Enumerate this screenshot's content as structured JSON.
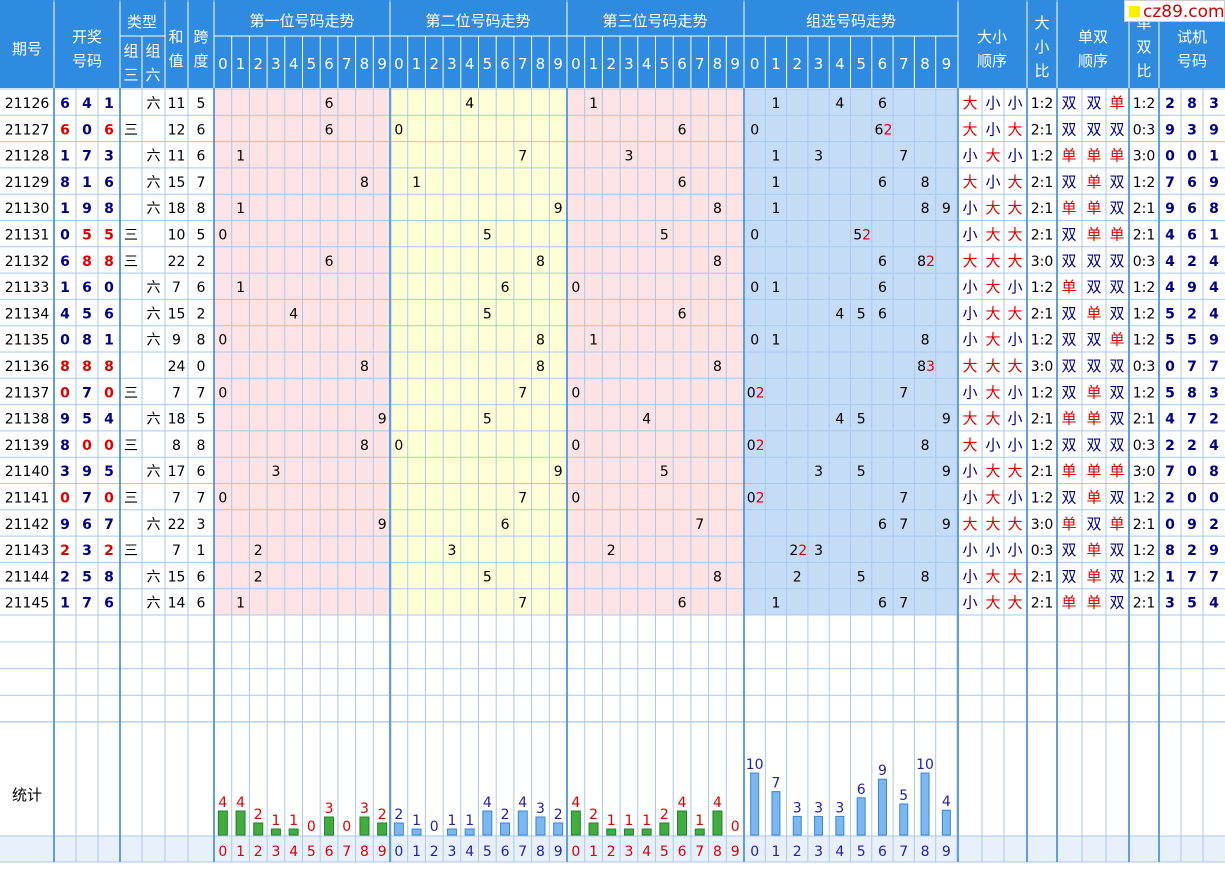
{
  "header": {
    "period": "期号",
    "draw_line1": "开奖",
    "draw_line2": "号码",
    "type": "类型",
    "type_g3_1": "组",
    "type_g3_2": "三",
    "type_g6_1": "组",
    "type_g6_2": "六",
    "sum_1": "和",
    "sum_2": "值",
    "span_1": "跨",
    "span_2": "度",
    "pos1": "第一位号码走势",
    "pos2": "第二位号码走势",
    "pos3": "第三位号码走势",
    "group": "组选号码走势",
    "bs_order_1": "大小",
    "bs_order_2": "顺序",
    "bs_ratio_1": "大",
    "bs_ratio_2": "小",
    "bs_ratio_3": "比",
    "oe_order_1": "单双",
    "oe_order_2": "顺序",
    "oe_ratio_1": "单",
    "oe_ratio_2": "双",
    "oe_ratio_3": "比",
    "trial_1": "试机",
    "trial_2": "号码",
    "digits": [
      "0",
      "1",
      "2",
      "3",
      "4",
      "5",
      "6",
      "7",
      "8",
      "9"
    ]
  },
  "watermark": "cz89.com",
  "stats_label": "统计",
  "colors": {
    "header": "#2e8be0",
    "red": "#e00000",
    "blue": "#00008b",
    "pink": "#fde3e3",
    "yellow": "#ffffd6",
    "lightblue": "#c5dcf6",
    "grid": "#a9c9ee"
  },
  "rows": [
    {
      "period": "21126",
      "num": [
        "6",
        "4",
        "1"
      ],
      "type": "六",
      "sum": "11",
      "span": "5",
      "bs": [
        "大",
        "小",
        "小"
      ],
      "bsr": "1:2",
      "oe": [
        "双",
        "双",
        "单"
      ],
      "oer": "1:2",
      "trial": [
        "2",
        "8",
        "3"
      ]
    },
    {
      "period": "21127",
      "num": [
        "6",
        "0",
        "6"
      ],
      "type": "三",
      "sum": "12",
      "span": "6",
      "bs": [
        "大",
        "小",
        "大"
      ],
      "bsr": "2:1",
      "oe": [
        "双",
        "双",
        "双"
      ],
      "oer": "0:3",
      "trial": [
        "9",
        "3",
        "9"
      ]
    },
    {
      "period": "21128",
      "num": [
        "1",
        "7",
        "3"
      ],
      "type": "六",
      "sum": "11",
      "span": "6",
      "bs": [
        "小",
        "大",
        "小"
      ],
      "bsr": "1:2",
      "oe": [
        "单",
        "单",
        "单"
      ],
      "oer": "3:0",
      "trial": [
        "0",
        "0",
        "1"
      ]
    },
    {
      "period": "21129",
      "num": [
        "8",
        "1",
        "6"
      ],
      "type": "六",
      "sum": "15",
      "span": "7",
      "bs": [
        "大",
        "小",
        "大"
      ],
      "bsr": "2:1",
      "oe": [
        "双",
        "单",
        "双"
      ],
      "oer": "1:2",
      "trial": [
        "7",
        "6",
        "9"
      ]
    },
    {
      "period": "21130",
      "num": [
        "1",
        "9",
        "8"
      ],
      "type": "六",
      "sum": "18",
      "span": "8",
      "bs": [
        "小",
        "大",
        "大"
      ],
      "bsr": "2:1",
      "oe": [
        "单",
        "单",
        "双"
      ],
      "oer": "2:1",
      "trial": [
        "9",
        "6",
        "8"
      ]
    },
    {
      "period": "21131",
      "num": [
        "0",
        "5",
        "5"
      ],
      "type": "三",
      "sum": "10",
      "span": "5",
      "bs": [
        "小",
        "大",
        "大"
      ],
      "bsr": "2:1",
      "oe": [
        "双",
        "单",
        "单"
      ],
      "oer": "2:1",
      "trial": [
        "4",
        "6",
        "1"
      ]
    },
    {
      "period": "21132",
      "num": [
        "6",
        "8",
        "8"
      ],
      "type": "三",
      "sum": "22",
      "span": "2",
      "bs": [
        "大",
        "大",
        "大"
      ],
      "bsr": "3:0",
      "oe": [
        "双",
        "双",
        "双"
      ],
      "oer": "0:3",
      "trial": [
        "4",
        "2",
        "4"
      ]
    },
    {
      "period": "21133",
      "num": [
        "1",
        "6",
        "0"
      ],
      "type": "六",
      "sum": "7",
      "span": "6",
      "bs": [
        "小",
        "大",
        "小"
      ],
      "bsr": "1:2",
      "oe": [
        "单",
        "双",
        "双"
      ],
      "oer": "1:2",
      "trial": [
        "4",
        "9",
        "4"
      ]
    },
    {
      "period": "21134",
      "num": [
        "4",
        "5",
        "6"
      ],
      "type": "六",
      "sum": "15",
      "span": "2",
      "bs": [
        "小",
        "大",
        "大"
      ],
      "bsr": "2:1",
      "oe": [
        "双",
        "单",
        "双"
      ],
      "oer": "1:2",
      "trial": [
        "5",
        "2",
        "4"
      ]
    },
    {
      "period": "21135",
      "num": [
        "0",
        "8",
        "1"
      ],
      "type": "六",
      "sum": "9",
      "span": "8",
      "bs": [
        "小",
        "大",
        "小"
      ],
      "bsr": "1:2",
      "oe": [
        "双",
        "双",
        "单"
      ],
      "oer": "1:2",
      "trial": [
        "5",
        "5",
        "9"
      ]
    },
    {
      "period": "21136",
      "num": [
        "8",
        "8",
        "8"
      ],
      "type": "",
      "sum": "24",
      "span": "0",
      "bs": [
        "大",
        "大",
        "大"
      ],
      "bsr": "3:0",
      "oe": [
        "双",
        "双",
        "双"
      ],
      "oer": "0:3",
      "trial": [
        "0",
        "7",
        "7"
      ]
    },
    {
      "period": "21137",
      "num": [
        "0",
        "7",
        "0"
      ],
      "type": "三",
      "sum": "7",
      "span": "7",
      "bs": [
        "小",
        "大",
        "小"
      ],
      "bsr": "1:2",
      "oe": [
        "双",
        "单",
        "双"
      ],
      "oer": "1:2",
      "trial": [
        "5",
        "8",
        "3"
      ]
    },
    {
      "period": "21138",
      "num": [
        "9",
        "5",
        "4"
      ],
      "type": "六",
      "sum": "18",
      "span": "5",
      "bs": [
        "大",
        "大",
        "小"
      ],
      "bsr": "2:1",
      "oe": [
        "单",
        "单",
        "双"
      ],
      "oer": "2:1",
      "trial": [
        "4",
        "7",
        "2"
      ]
    },
    {
      "period": "21139",
      "num": [
        "8",
        "0",
        "0"
      ],
      "type": "三",
      "sum": "8",
      "span": "8",
      "bs": [
        "大",
        "小",
        "小"
      ],
      "bsr": "1:2",
      "oe": [
        "双",
        "双",
        "双"
      ],
      "oer": "0:3",
      "trial": [
        "2",
        "2",
        "4"
      ]
    },
    {
      "period": "21140",
      "num": [
        "3",
        "9",
        "5"
      ],
      "type": "六",
      "sum": "17",
      "span": "6",
      "bs": [
        "小",
        "大",
        "大"
      ],
      "bsr": "2:1",
      "oe": [
        "单",
        "单",
        "单"
      ],
      "oer": "3:0",
      "trial": [
        "7",
        "0",
        "8"
      ]
    },
    {
      "period": "21141",
      "num": [
        "0",
        "7",
        "0"
      ],
      "type": "三",
      "sum": "7",
      "span": "7",
      "bs": [
        "小",
        "大",
        "小"
      ],
      "bsr": "1:2",
      "oe": [
        "双",
        "单",
        "双"
      ],
      "oer": "1:2",
      "trial": [
        "2",
        "0",
        "0"
      ]
    },
    {
      "period": "21142",
      "num": [
        "9",
        "6",
        "7"
      ],
      "type": "六",
      "sum": "22",
      "span": "3",
      "bs": [
        "大",
        "大",
        "大"
      ],
      "bsr": "3:0",
      "oe": [
        "单",
        "双",
        "单"
      ],
      "oer": "2:1",
      "trial": [
        "0",
        "9",
        "2"
      ]
    },
    {
      "period": "21143",
      "num": [
        "2",
        "3",
        "2"
      ],
      "type": "三",
      "sum": "7",
      "span": "1",
      "bs": [
        "小",
        "小",
        "小"
      ],
      "bsr": "0:3",
      "oe": [
        "双",
        "单",
        "双"
      ],
      "oer": "1:2",
      "trial": [
        "8",
        "2",
        "9"
      ]
    },
    {
      "period": "21144",
      "num": [
        "2",
        "5",
        "8"
      ],
      "type": "六",
      "sum": "15",
      "span": "6",
      "bs": [
        "小",
        "大",
        "大"
      ],
      "bsr": "2:1",
      "oe": [
        "双",
        "单",
        "双"
      ],
      "oer": "1:2",
      "trial": [
        "1",
        "7",
        "7"
      ]
    },
    {
      "period": "21145",
      "num": [
        "1",
        "7",
        "6"
      ],
      "type": "六",
      "sum": "14",
      "span": "6",
      "bs": [
        "小",
        "大",
        "大"
      ],
      "bsr": "2:1",
      "oe": [
        "单",
        "单",
        "双"
      ],
      "oer": "2:1",
      "trial": [
        "3",
        "5",
        "4"
      ]
    }
  ],
  "chart_data": {
    "type": "bar",
    "title": "统计",
    "categories": [
      "0",
      "1",
      "2",
      "3",
      "4",
      "5",
      "6",
      "7",
      "8",
      "9"
    ],
    "series": [
      {
        "name": "第一位号码走势",
        "values": [
          4,
          4,
          2,
          1,
          1,
          0,
          3,
          0,
          3,
          2
        ]
      },
      {
        "name": "第二位号码走势",
        "values": [
          2,
          1,
          0,
          1,
          1,
          4,
          2,
          4,
          3,
          2
        ]
      },
      {
        "name": "第三位号码走势",
        "values": [
          4,
          2,
          1,
          1,
          1,
          2,
          4,
          1,
          4,
          0
        ]
      },
      {
        "name": "组选号码走势",
        "values": [
          10,
          7,
          3,
          3,
          3,
          6,
          9,
          5,
          10,
          4
        ]
      }
    ]
  }
}
